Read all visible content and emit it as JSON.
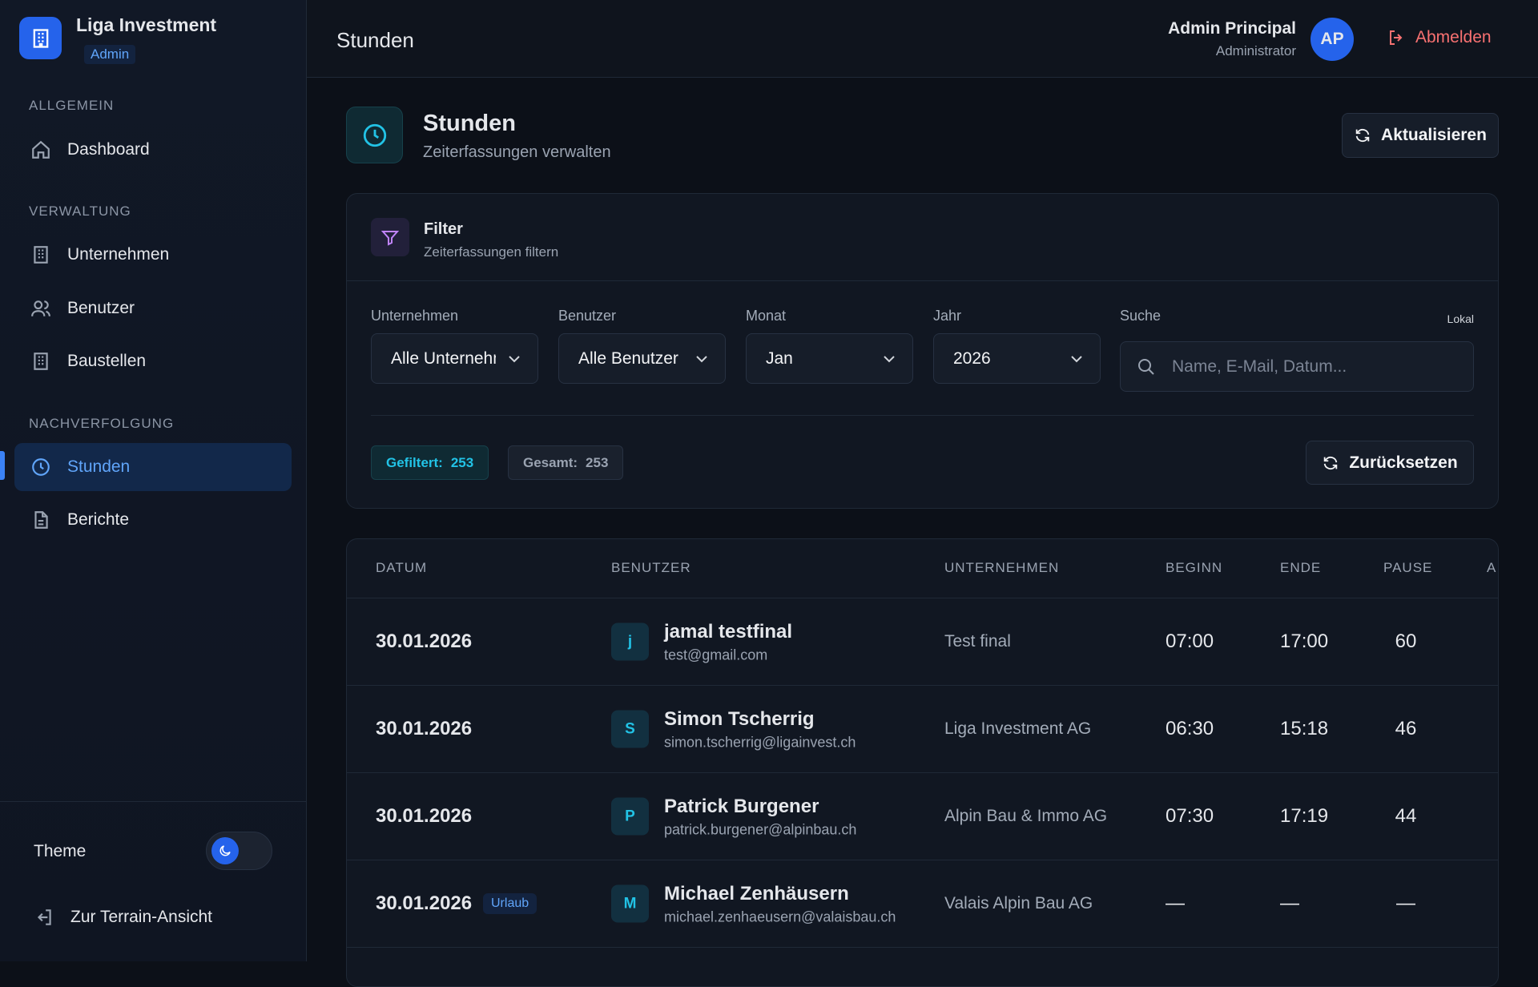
{
  "sidebar": {
    "brand": "Liga Investment",
    "role": "Admin",
    "sections": [
      {
        "title": "ALLGEMEIN",
        "items": [
          "Dashboard"
        ]
      },
      {
        "title": "VERWALTUNG",
        "items": [
          "Unternehmen",
          "Benutzer",
          "Baustellen"
        ]
      },
      {
        "title": "NACHVERFOLGUNG",
        "items": [
          "Stunden",
          "Berichte"
        ]
      }
    ],
    "theme_label": "Theme",
    "terrain_link": "Zur Terrain-Ansicht"
  },
  "header": {
    "title": "Stunden",
    "user_name": "Admin Principal",
    "user_role": "Administrator",
    "avatar": "AP",
    "logout": "Abmelden"
  },
  "page": {
    "title": "Stunden",
    "subtitle": "Zeiterfassungen verwalten",
    "refresh": "Aktualisieren"
  },
  "filter": {
    "title": "Filter",
    "subtitle": "Zeiterfassungen filtern",
    "fields": [
      {
        "label": "Unternehmen",
        "value": "Alle Unternehmen"
      },
      {
        "label": "Benutzer",
        "value": "Alle Benutzer"
      },
      {
        "label": "Monat",
        "value": "Jan"
      },
      {
        "label": "Jahr",
        "value": "2026"
      }
    ],
    "search": {
      "label": "Suche",
      "placeholder": "Name, E-Mail, Datum...",
      "hint": "Lokal"
    },
    "filtered": {
      "label": "Gefiltert:",
      "value": 253
    },
    "total": {
      "label": "Gesamt:",
      "value": 253
    },
    "reset": "Zurücksetzen"
  },
  "table": {
    "columns": [
      "DATUM",
      "BENUTZER",
      "UNTERNEHMEN",
      "BEGINN",
      "ENDE",
      "PAUSE",
      "A"
    ],
    "rows": [
      {
        "date": "30.01.2026",
        "initial": "j",
        "name": "jamal testfinal",
        "email": "test@gmail.com",
        "company": "Test final",
        "begin": "07:00",
        "end": "17:00",
        "pause": "60"
      },
      {
        "date": "30.01.2026",
        "initial": "S",
        "name": "Simon Tscherrig",
        "email": "simon.tscherrig@ligainvest.ch",
        "company": "Liga Investment AG",
        "begin": "06:30",
        "end": "15:18",
        "pause": "46"
      },
      {
        "date": "30.01.2026",
        "initial": "P",
        "name": "Patrick Burgener",
        "email": "patrick.burgener@alpinbau.ch",
        "company": "Alpin Bau & Immo AG",
        "begin": "07:30",
        "end": "17:19",
        "pause": "44"
      },
      {
        "date": "30.01.2026",
        "badge": "Urlaub",
        "initial": "M",
        "name": "Michael Zenhäusern",
        "email": "michael.zenhaeusern@valaisbau.ch",
        "company": "Valais Alpin Bau AG",
        "begin": "—",
        "end": "—",
        "pause": "—"
      }
    ]
  }
}
